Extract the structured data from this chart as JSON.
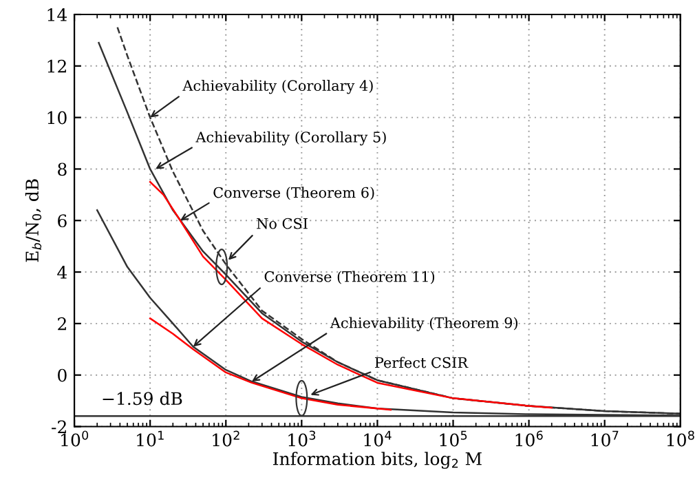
{
  "chart_data": {
    "type": "line",
    "xlabel": "Information bits, log$_{2}$ M",
    "ylabel": "E$_{b}$/N$_{0}$, dB",
    "log": "x",
    "grid": true,
    "legend": false,
    "xlim": [
      1,
      100000000
    ],
    "ylim": [
      -2,
      14
    ],
    "xticks": [
      {
        "value": 1,
        "label": "10$^{0}$"
      },
      {
        "value": 10,
        "label": "10$^{1}$"
      },
      {
        "value": 100,
        "label": "10$^{2}$"
      },
      {
        "value": 1000,
        "label": "10$^{3}$"
      },
      {
        "value": 10000,
        "label": "10$^{4}$"
      },
      {
        "value": 100000,
        "label": "10$^{5}$"
      },
      {
        "value": 1000000,
        "label": "10$^{6}$"
      },
      {
        "value": 10000000,
        "label": "10$^{7}$"
      },
      {
        "value": 100000000,
        "label": "10$^{8}$"
      }
    ],
    "yticks": [
      -2,
      0,
      2,
      4,
      6,
      8,
      10,
      12,
      14
    ],
    "series": [
      {
        "color": "#333333",
        "line_style": "dashed",
        "x": [
          3.7,
          5,
          10,
          20,
          50,
          100,
          300,
          1000,
          3000,
          10000,
          100000,
          1000000,
          10000000,
          100000000
        ],
        "values": [
          13.5,
          12.4,
          10.0,
          7.9,
          5.6,
          4.3,
          2.5,
          1.4,
          0.5,
          -0.2,
          -0.9,
          -1.2,
          -1.4,
          -1.5
        ]
      },
      {
        "color": "#333333",
        "line_style": "solid",
        "x": [
          2.1,
          5,
          10,
          20,
          50,
          100,
          300,
          1000,
          3000,
          10000,
          100000,
          1000000,
          10000000,
          100000000
        ],
        "values": [
          12.9,
          10.2,
          8.0,
          6.4,
          4.8,
          3.9,
          2.4,
          1.3,
          0.5,
          -0.2,
          -0.9,
          -1.2,
          -1.4,
          -1.5
        ]
      },
      {
        "color": "#ff0000",
        "line_style": "solid",
        "x": [
          10,
          15,
          25,
          50,
          100,
          300,
          1000,
          3000,
          10000,
          100000,
          1000000,
          2000000
        ],
        "values": [
          7.5,
          7.0,
          6.0,
          4.6,
          3.7,
          2.2,
          1.2,
          0.4,
          -0.3,
          -0.9,
          -1.2,
          -1.27
        ]
      },
      {
        "color": "#333333",
        "line_style": "solid",
        "x": [
          2,
          5,
          10,
          20,
          37,
          100,
          220,
          1000,
          3000,
          10000,
          100000,
          1000000,
          100000000
        ],
        "values": [
          6.4,
          4.2,
          3.0,
          2.0,
          1.1,
          0.2,
          -0.25,
          -0.85,
          -1.1,
          -1.3,
          -1.45,
          -1.52,
          -1.57
        ]
      },
      {
        "color": "#ff0000",
        "line_style": "solid",
        "x": [
          10,
          20,
          37,
          100,
          220,
          1000,
          3000,
          15000
        ],
        "values": [
          2.2,
          1.6,
          1.0,
          0.1,
          -0.3,
          -0.9,
          -1.15,
          -1.35
        ]
      }
    ],
    "ref_lines": [
      {
        "axis": "y",
        "value": -1.59,
        "label": "−1.59 dB",
        "color": "#333333",
        "line_style": "solid"
      }
    ],
    "annotations": [
      {
        "text": "Achievability (Corollary 4)",
        "x": 10,
        "y": 10
      },
      {
        "text": "Achievability (Corollary 5)",
        "x": 11.8,
        "y": 8
      },
      {
        "text": "Converse (Theorem 6)",
        "x": 25,
        "y": 6
      },
      {
        "text": "No CSI",
        "x": 88,
        "y": 4.2
      },
      {
        "text": "Converse (Theorem 11)",
        "x": 37,
        "y": 1.1
      },
      {
        "text": "Achievability (Theorem 9)",
        "x": 220,
        "y": -0.25
      },
      {
        "text": "Perfect CSIR",
        "x": 1000,
        "y": -0.9
      }
    ]
  }
}
